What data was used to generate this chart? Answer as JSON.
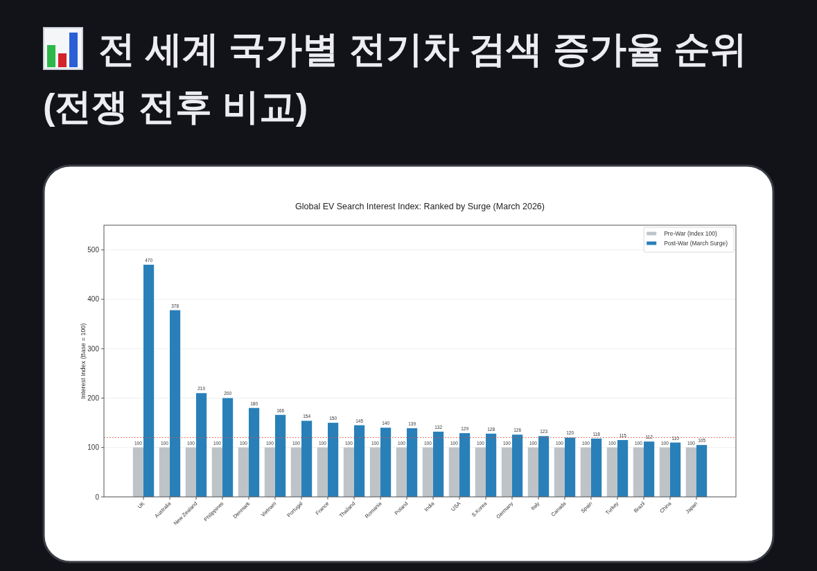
{
  "chart_data": {
    "type": "bar",
    "title": "전 세계 국가별 전기차 검색 증가율 순위 (전쟁 전후 비교)",
    "subtitle": "Global EV Search Interest Index: Ranked by Surge (March 2026)",
    "ylabel": "Interest Index (Base = 100)",
    "categories": [
      "UK",
      "Australia",
      "New Zealand",
      "Philippines",
      "Denmark",
      "Vietnam",
      "Portugal",
      "France",
      "Thailand",
      "Romania",
      "Poland",
      "India",
      "USA",
      "S.Korea",
      "Germany",
      "Italy",
      "Canada",
      "Spain",
      "Turkey",
      "Brazil",
      "China",
      "Japan"
    ],
    "series": [
      {
        "name": "Pre-War (Index 100)",
        "color": "#bdc3c7",
        "values": [
          100,
          100,
          100,
          100,
          100,
          100,
          100,
          100,
          100,
          100,
          100,
          100,
          100,
          100,
          100,
          100,
          100,
          100,
          100,
          100,
          100,
          100
        ]
      },
      {
        "name": "Post-War (March Surge)",
        "color": "#2980b9",
        "values": [
          470,
          378,
          210,
          200,
          180,
          166,
          154,
          150,
          145,
          140,
          139,
          132,
          129,
          128,
          126,
          123,
          120,
          118,
          115,
          112,
          110,
          105
        ]
      }
    ],
    "ylim": [
      0,
      550
    ],
    "yticks": [
      0,
      100,
      200,
      300,
      400,
      500
    ],
    "grid": "y",
    "legend": "top right",
    "data_labels": true,
    "ref_lines": [
      {
        "axis": "y",
        "value": 120,
        "color": "#e74c3c",
        "line_style": "dotted"
      }
    ]
  }
}
